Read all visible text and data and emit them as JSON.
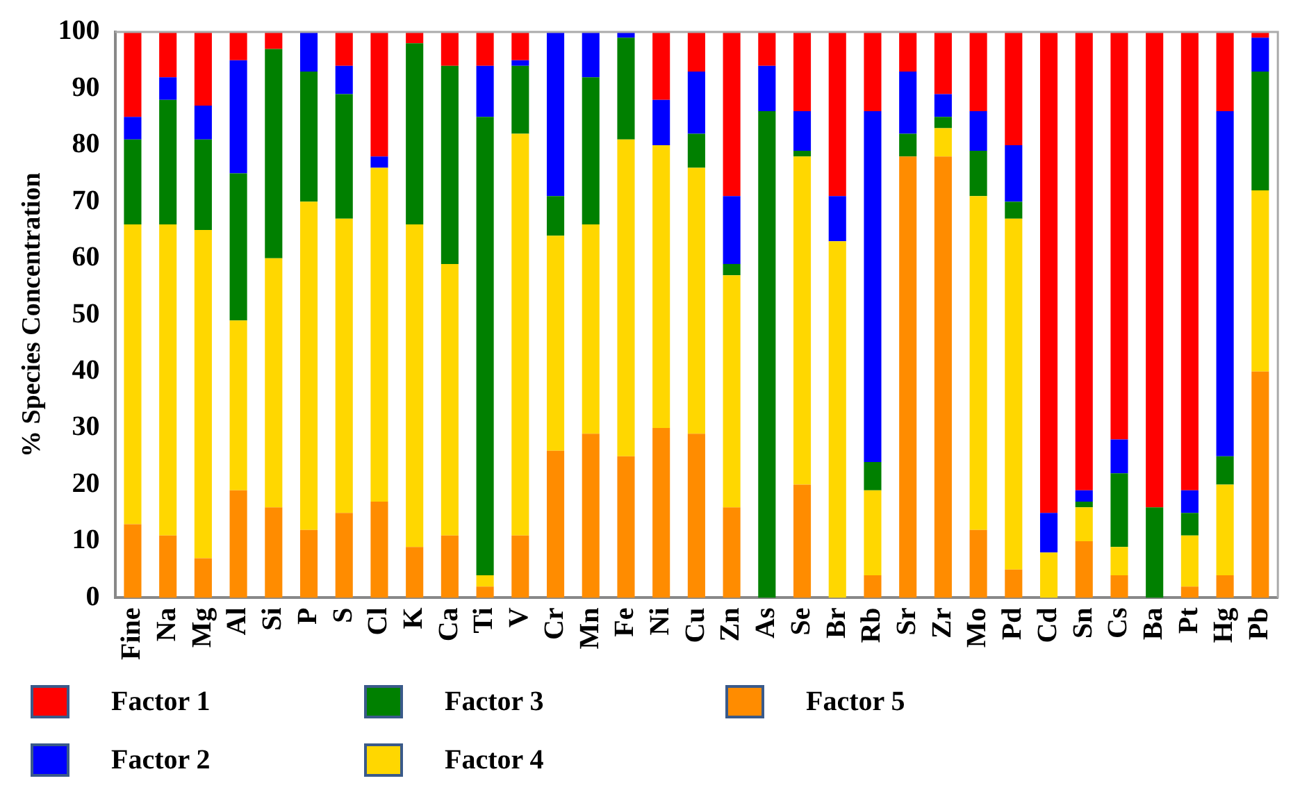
{
  "chart_data": {
    "type": "bar",
    "ylabel": "% Species Concentration",
    "stacked": true,
    "grid": false,
    "legend": "bottom",
    "categories": [
      "Fine",
      "Na",
      "Mg",
      "Al",
      "Si",
      "P",
      "S",
      "Cl",
      "K",
      "Ca",
      "Ti",
      "V",
      "Cr",
      "Mn",
      "Fe",
      "Ni",
      "Cu",
      "Zn",
      "As",
      "Se",
      "Br",
      "Rb",
      "Sr",
      "Zr",
      "Mo",
      "Pd",
      "Cd",
      "Sn",
      "Cs",
      "Ba",
      "Pt",
      "Hg",
      "Pb"
    ],
    "ylim": [
      0,
      100
    ],
    "yticks": [
      0,
      10,
      20,
      30,
      40,
      50,
      60,
      70,
      80,
      90,
      100
    ],
    "series": [
      {
        "name": "Factor 5",
        "color": "#ff8c00",
        "values": [
          13,
          11,
          7,
          19,
          16,
          12,
          15,
          17,
          9,
          11,
          2,
          11,
          26,
          29,
          25,
          30,
          29,
          16,
          0,
          20,
          0,
          4,
          78,
          78,
          12,
          5,
          0,
          10,
          4,
          0,
          2,
          4,
          40
        ]
      },
      {
        "name": "Factor 4",
        "color": "#ffd700",
        "values": [
          53,
          55,
          58,
          30,
          44,
          58,
          52,
          59,
          57,
          48,
          2,
          71,
          38,
          37,
          56,
          50,
          47,
          41,
          0,
          58,
          63,
          15,
          0,
          5,
          59,
          62,
          8,
          6,
          5,
          0,
          9,
          16,
          32
        ]
      },
      {
        "name": "Factor 3",
        "color": "#008000",
        "values": [
          15,
          22,
          16,
          26,
          37,
          23,
          22,
          0,
          32,
          35,
          81,
          12,
          7,
          26,
          18,
          0,
          6,
          2,
          86,
          1,
          0,
          5,
          4,
          2,
          8,
          3,
          0,
          1,
          13,
          16,
          4,
          5,
          21
        ]
      },
      {
        "name": "Factor 2",
        "color": "#0000ff",
        "values": [
          4,
          4,
          6,
          20,
          0,
          7,
          5,
          2,
          0,
          0,
          9,
          1,
          29,
          8,
          1,
          8,
          11,
          12,
          8,
          7,
          8,
          62,
          11,
          4,
          7,
          10,
          7,
          2,
          6,
          0,
          4,
          61,
          6
        ]
      },
      {
        "name": "Factor 1",
        "color": "#ff0000",
        "values": [
          15,
          8,
          13,
          5,
          3,
          0,
          6,
          22,
          2,
          6,
          6,
          5,
          0,
          0,
          0,
          12,
          7,
          29,
          6,
          14,
          29,
          14,
          7,
          11,
          14,
          20,
          85,
          81,
          72,
          84,
          81,
          14,
          1
        ]
      }
    ]
  }
}
